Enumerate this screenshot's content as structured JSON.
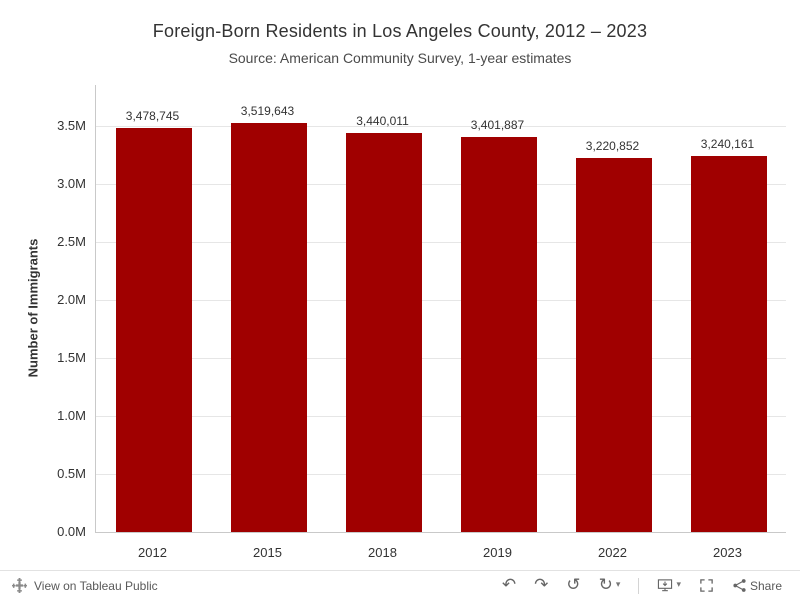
{
  "chart_data": {
    "type": "bar",
    "title": "Foreign-Born Residents in Los Angeles County, 2012 – 2023",
    "subtitle": "Source: American Community Survey, 1-year estimates",
    "categories": [
      "2012",
      "2015",
      "2018",
      "2019",
      "2022",
      "2023"
    ],
    "values": [
      3478745,
      3519643,
      3440011,
      3401887,
      3220852,
      3240161
    ],
    "value_labels": [
      "3,478,745",
      "3,519,643",
      "3,440,011",
      "3,401,887",
      "3,220,852",
      "3,240,161"
    ],
    "xlabel": "",
    "ylabel": "Number of Immigrants",
    "y_ticks": [
      "0.0M",
      "0.5M",
      "1.0M",
      "1.5M",
      "2.0M",
      "2.5M",
      "3.0M",
      "3.5M"
    ],
    "y_tick_values": [
      0,
      500000,
      1000000,
      1500000,
      2000000,
      2500000,
      3000000,
      3500000
    ],
    "ylim": [
      0,
      3850000
    ],
    "bar_color": "#a00000",
    "grid": true,
    "legend": "none"
  },
  "colors": {
    "bar": "#a00000",
    "gridline": "#e6e6e6",
    "axis_line": "#c9c9c9",
    "text": "#333333",
    "toolbar_icon": "#666666"
  },
  "toolbar": {
    "view_label": "View on Tableau Public",
    "share_label": "Share",
    "undo_glyph": "↶",
    "redo_glyph": "↷",
    "replay_glyph": "↺",
    "refresh_glyph": "↻",
    "caret_glyph": "▾"
  }
}
